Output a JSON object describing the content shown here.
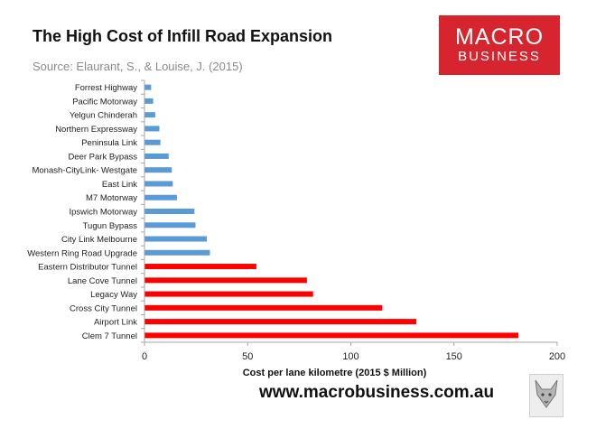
{
  "header": {
    "title": "The High Cost of Infill Road Expansion",
    "source": "Source: Elaurant, S., & Louise, J. (2015)"
  },
  "logo": {
    "line1": "MACRO",
    "line2": "BUSINESS",
    "color": "#d7252f"
  },
  "footer": {
    "website": "www.macrobusiness.com.au",
    "icon": "fox-icon"
  },
  "colors": {
    "tunnel": "#ff0000",
    "road": "#5b9bd5",
    "axis": "#a6a6a6"
  },
  "chart_data": {
    "type": "bar",
    "orientation": "horizontal",
    "title": "The High Cost of Infill Road Expansion",
    "xlabel": "Cost per lane kilometre (2015 $ Million)",
    "ylabel": "",
    "xlim": [
      0,
      200
    ],
    "xticks": [
      0,
      50,
      100,
      150,
      200
    ],
    "grid": false,
    "legend": "none",
    "categories": [
      "Forrest Highway",
      "Pacific Motorway",
      "Yelgun Chinderah",
      "Northern Expressway",
      "Peninsula Link",
      "Deer Park Bypass",
      "Monash-CityLink- Westgate",
      "East Link",
      "M7 Motorway",
      "Ipswich Motorway",
      "Tugun Bypass",
      "City Link Melbourne",
      "Western Ring Road Upgrade",
      "Eastern Distributor Tunnel",
      "Lane Cove Tunnel",
      "Legacy Way",
      "Cross City Tunnel",
      "Airport Link",
      "Clem 7 Tunnel"
    ],
    "values": [
      3,
      4,
      5,
      7,
      7.5,
      11.5,
      13,
      13.5,
      15.5,
      24,
      24.5,
      30,
      31.5,
      54,
      78.5,
      81.5,
      115,
      131.5,
      181
    ],
    "bar_colors": [
      "#5b9bd5",
      "#5b9bd5",
      "#5b9bd5",
      "#5b9bd5",
      "#5b9bd5",
      "#5b9bd5",
      "#5b9bd5",
      "#5b9bd5",
      "#5b9bd5",
      "#5b9bd5",
      "#5b9bd5",
      "#5b9bd5",
      "#5b9bd5",
      "#ff0000",
      "#ff0000",
      "#ff0000",
      "#ff0000",
      "#ff0000",
      "#ff0000"
    ]
  }
}
